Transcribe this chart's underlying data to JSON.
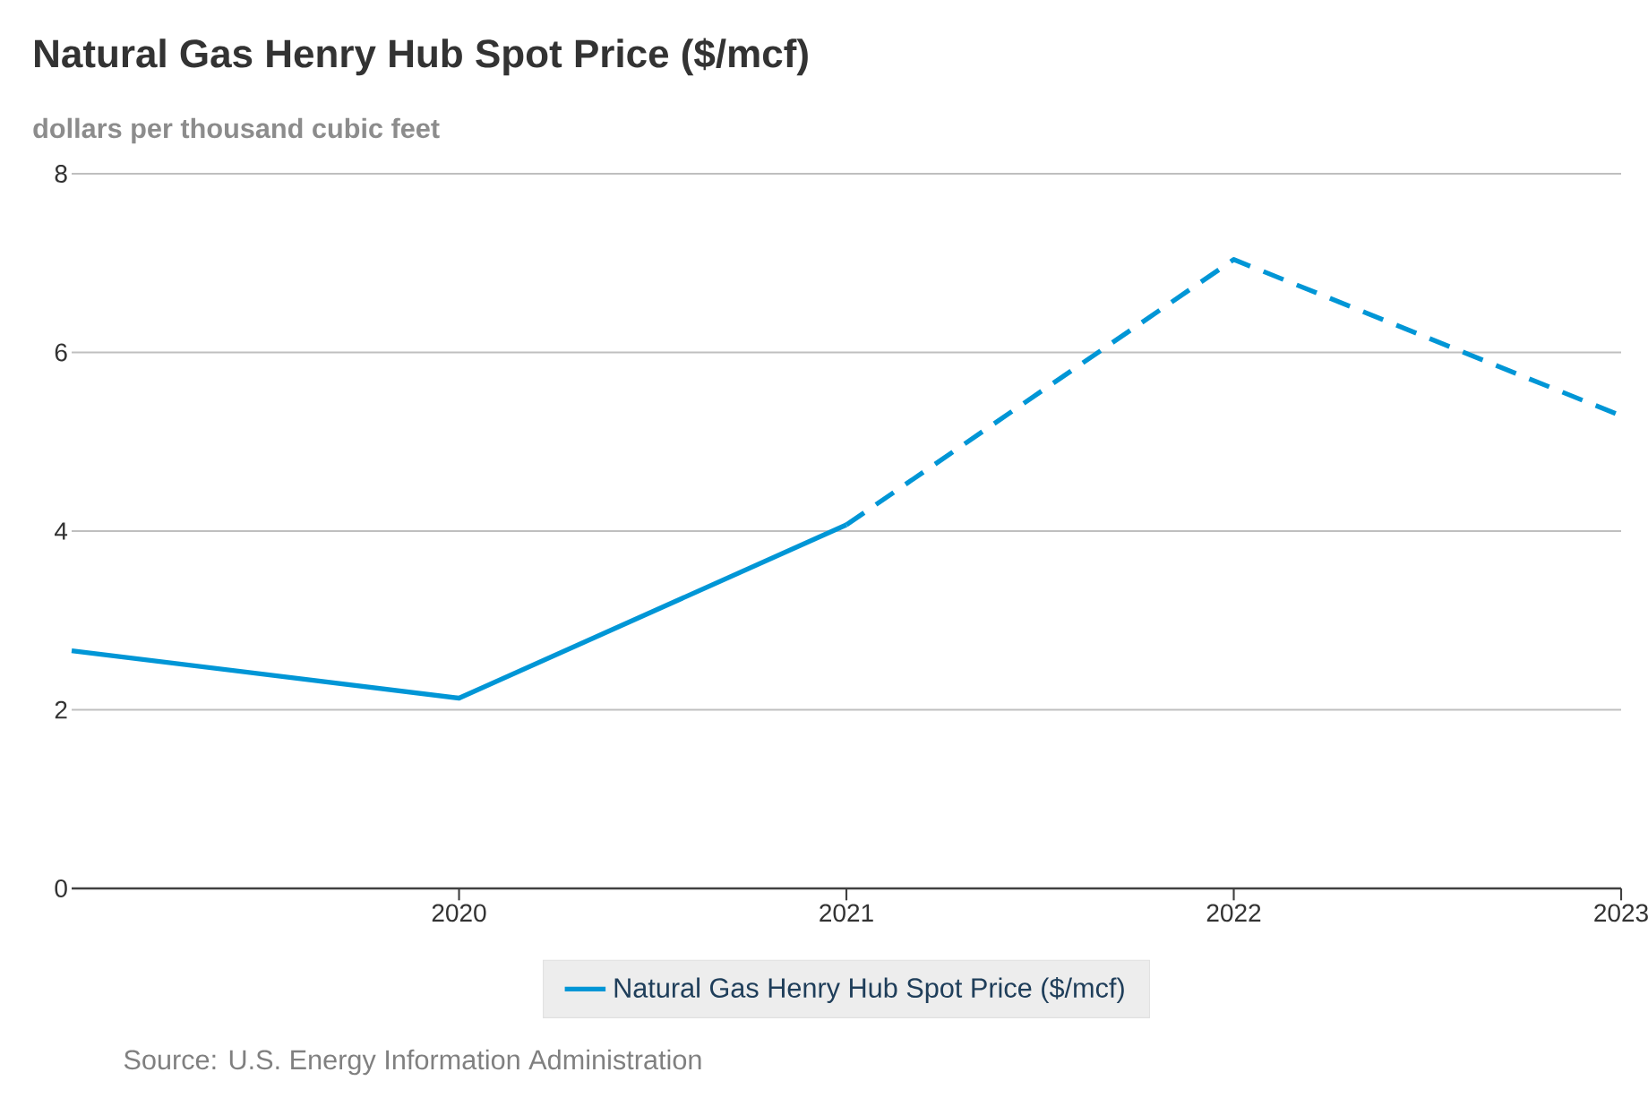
{
  "chart_data": {
    "type": "line",
    "title": "Natural Gas Henry Hub Spot Price ($/mcf)",
    "subtitle": "dollars per thousand cubic feet",
    "x": [
      2019,
      2020,
      2021,
      2022,
      2023
    ],
    "xlim": [
      2019,
      2023
    ],
    "xticks": [
      2020,
      2021,
      2022,
      2023
    ],
    "ylim": [
      0,
      8
    ],
    "yticks": [
      0,
      2,
      4,
      6,
      8
    ],
    "grid": "y",
    "legend": "bottom",
    "series": [
      {
        "name": "Natural Gas Henry Hub Spot Price ($/mcf)",
        "color": "#0096d6",
        "line_style": "solid",
        "values": [
          2.66,
          2.13,
          4.07,
          null,
          null
        ]
      },
      {
        "color": "#0096d6",
        "line_style": "dashed",
        "values": [
          null,
          null,
          4.07,
          7.04,
          5.29
        ]
      }
    ],
    "annotations": [
      "Source: U.S. Energy Information Administration"
    ]
  }
}
